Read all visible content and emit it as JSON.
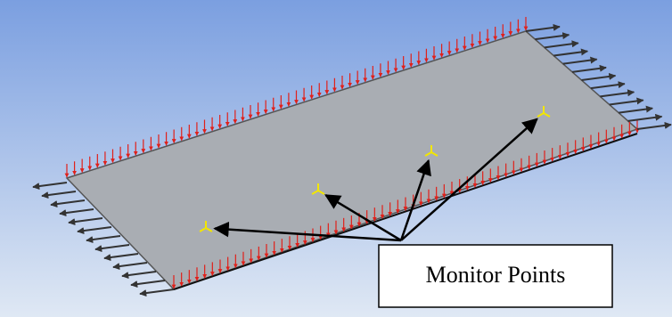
{
  "annotation": {
    "label": "Monitor Points"
  }
}
